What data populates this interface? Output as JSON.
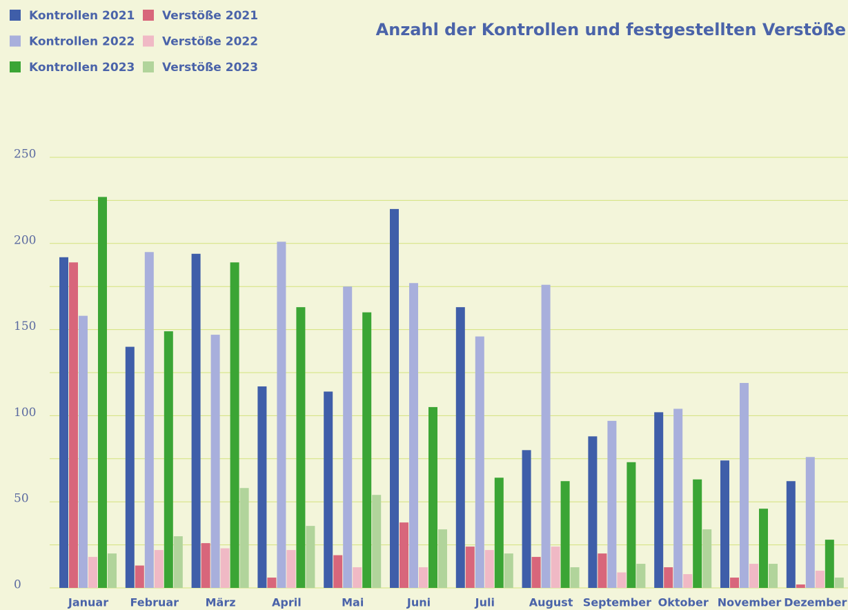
{
  "chart_data": {
    "type": "bar",
    "title": "Anzahl der Kontrollen und festgestellten Verstöße",
    "categories": [
      "Januar",
      "Februar",
      "März",
      "April",
      "Mai",
      "Juni",
      "Juli",
      "August",
      "September",
      "Oktober",
      "November",
      "Dezember"
    ],
    "series": [
      {
        "name": "Kontrollen 2021",
        "color": "#3f5ea9",
        "values": [
          192,
          140,
          194,
          117,
          114,
          220,
          163,
          80,
          88,
          102,
          74,
          62
        ]
      },
      {
        "name": "Verstöße 2021",
        "color": "#d8667b",
        "values": [
          189,
          13,
          26,
          6,
          19,
          38,
          24,
          18,
          20,
          12,
          6,
          2
        ]
      },
      {
        "name": "Kontrollen 2022",
        "color": "#a8afdc",
        "values": [
          158,
          195,
          147,
          201,
          175,
          177,
          146,
          176,
          97,
          104,
          119,
          76
        ]
      },
      {
        "name": "Verstöße 2022",
        "color": "#f0b9c5",
        "values": [
          18,
          22,
          23,
          22,
          12,
          12,
          22,
          24,
          9,
          8,
          14,
          10
        ]
      },
      {
        "name": "Kontrollen 2023",
        "color": "#3ba535",
        "values": [
          227,
          149,
          189,
          163,
          160,
          105,
          64,
          62,
          73,
          63,
          46,
          28
        ]
      },
      {
        "name": "Verstöße 2023",
        "color": "#b1d49b",
        "values": [
          20,
          30,
          58,
          36,
          54,
          34,
          20,
          12,
          14,
          34,
          14,
          6
        ]
      }
    ],
    "ylim": [
      0,
      250
    ],
    "yticks": [
      0,
      50,
      100,
      150,
      200,
      250
    ],
    "minor_yticks": [
      25,
      75,
      125,
      175,
      225
    ],
    "grid": true,
    "legend": "top-left"
  }
}
